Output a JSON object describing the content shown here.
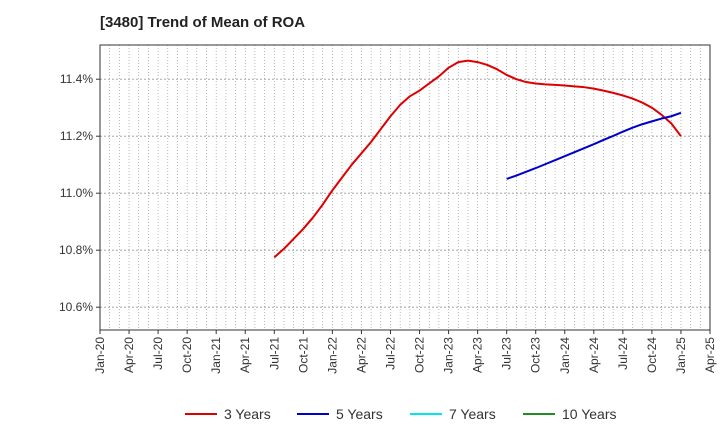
{
  "chart_data": {
    "type": "line",
    "title": "[3480]  Trend of Mean of ROA",
    "xlabel": "",
    "ylabel": "",
    "ylim": [
      10.52,
      11.52
    ],
    "y_ticks": [
      10.6,
      10.8,
      11.0,
      11.2,
      11.4
    ],
    "y_tick_labels": [
      "10.6%",
      "10.8%",
      "11.0%",
      "11.2%",
      "11.4%"
    ],
    "x_range": [
      "2020-01",
      "2025-04"
    ],
    "x_ticks": [
      "2020-01",
      "2020-04",
      "2020-07",
      "2020-10",
      "2021-01",
      "2021-04",
      "2021-07",
      "2021-10",
      "2022-01",
      "2022-04",
      "2022-07",
      "2022-10",
      "2023-01",
      "2023-04",
      "2023-07",
      "2023-10",
      "2024-01",
      "2024-04",
      "2024-07",
      "2024-10",
      "2025-01",
      "2025-04"
    ],
    "x_tick_labels": [
      "Jan-20",
      "Apr-20",
      "Jul-20",
      "Oct-20",
      "Jan-21",
      "Apr-21",
      "Jul-21",
      "Oct-21",
      "Jan-22",
      "Apr-22",
      "Jul-22",
      "Oct-22",
      "Jan-23",
      "Apr-23",
      "Jul-23",
      "Oct-23",
      "Jan-24",
      "Apr-24",
      "Jul-24",
      "Oct-24",
      "Jan-25",
      "Apr-25"
    ],
    "grid": true,
    "legend_placement": "bottom",
    "series": [
      {
        "name": "3 Years",
        "color": "#dd0000",
        "x": [
          "2021-07",
          "2021-08",
          "2021-09",
          "2021-10",
          "2021-11",
          "2021-12",
          "2022-01",
          "2022-02",
          "2022-03",
          "2022-04",
          "2022-05",
          "2022-06",
          "2022-07",
          "2022-08",
          "2022-09",
          "2022-10",
          "2022-11",
          "2022-12",
          "2023-01",
          "2023-02",
          "2023-03",
          "2023-04",
          "2023-05",
          "2023-06",
          "2023-07",
          "2023-08",
          "2023-09",
          "2023-10",
          "2023-11",
          "2023-12",
          "2024-01",
          "2024-02",
          "2024-03",
          "2024-04",
          "2024-05",
          "2024-06",
          "2024-07",
          "2024-08",
          "2024-09",
          "2024-10",
          "2024-11",
          "2024-12",
          "2025-01"
        ],
        "y": [
          10.775,
          10.805,
          10.84,
          10.875,
          10.915,
          10.96,
          11.01,
          11.055,
          11.1,
          11.14,
          11.18,
          11.225,
          11.27,
          11.31,
          11.34,
          11.36,
          11.385,
          11.41,
          11.44,
          11.46,
          11.465,
          11.46,
          11.45,
          11.435,
          11.415,
          11.4,
          11.39,
          11.385,
          11.382,
          11.38,
          11.378,
          11.375,
          11.372,
          11.367,
          11.36,
          11.352,
          11.343,
          11.332,
          11.318,
          11.3,
          11.275,
          11.245,
          11.2
        ]
      },
      {
        "name": "5 Years",
        "color": "#0000cc",
        "x": [
          "2023-07",
          "2023-08",
          "2023-09",
          "2023-10",
          "2023-11",
          "2023-12",
          "2024-01",
          "2024-02",
          "2024-03",
          "2024-04",
          "2024-05",
          "2024-06",
          "2024-07",
          "2024-08",
          "2024-09",
          "2024-10",
          "2024-11",
          "2024-12",
          "2025-01"
        ],
        "y": [
          11.05,
          11.062,
          11.075,
          11.088,
          11.102,
          11.116,
          11.13,
          11.144,
          11.158,
          11.172,
          11.187,
          11.201,
          11.216,
          11.23,
          11.242,
          11.252,
          11.262,
          11.27,
          11.282
        ]
      },
      {
        "name": "7 Years",
        "color": "#00e5ee",
        "x": [],
        "y": []
      },
      {
        "name": "10 Years",
        "color": "#228b22",
        "x": [],
        "y": []
      }
    ]
  }
}
